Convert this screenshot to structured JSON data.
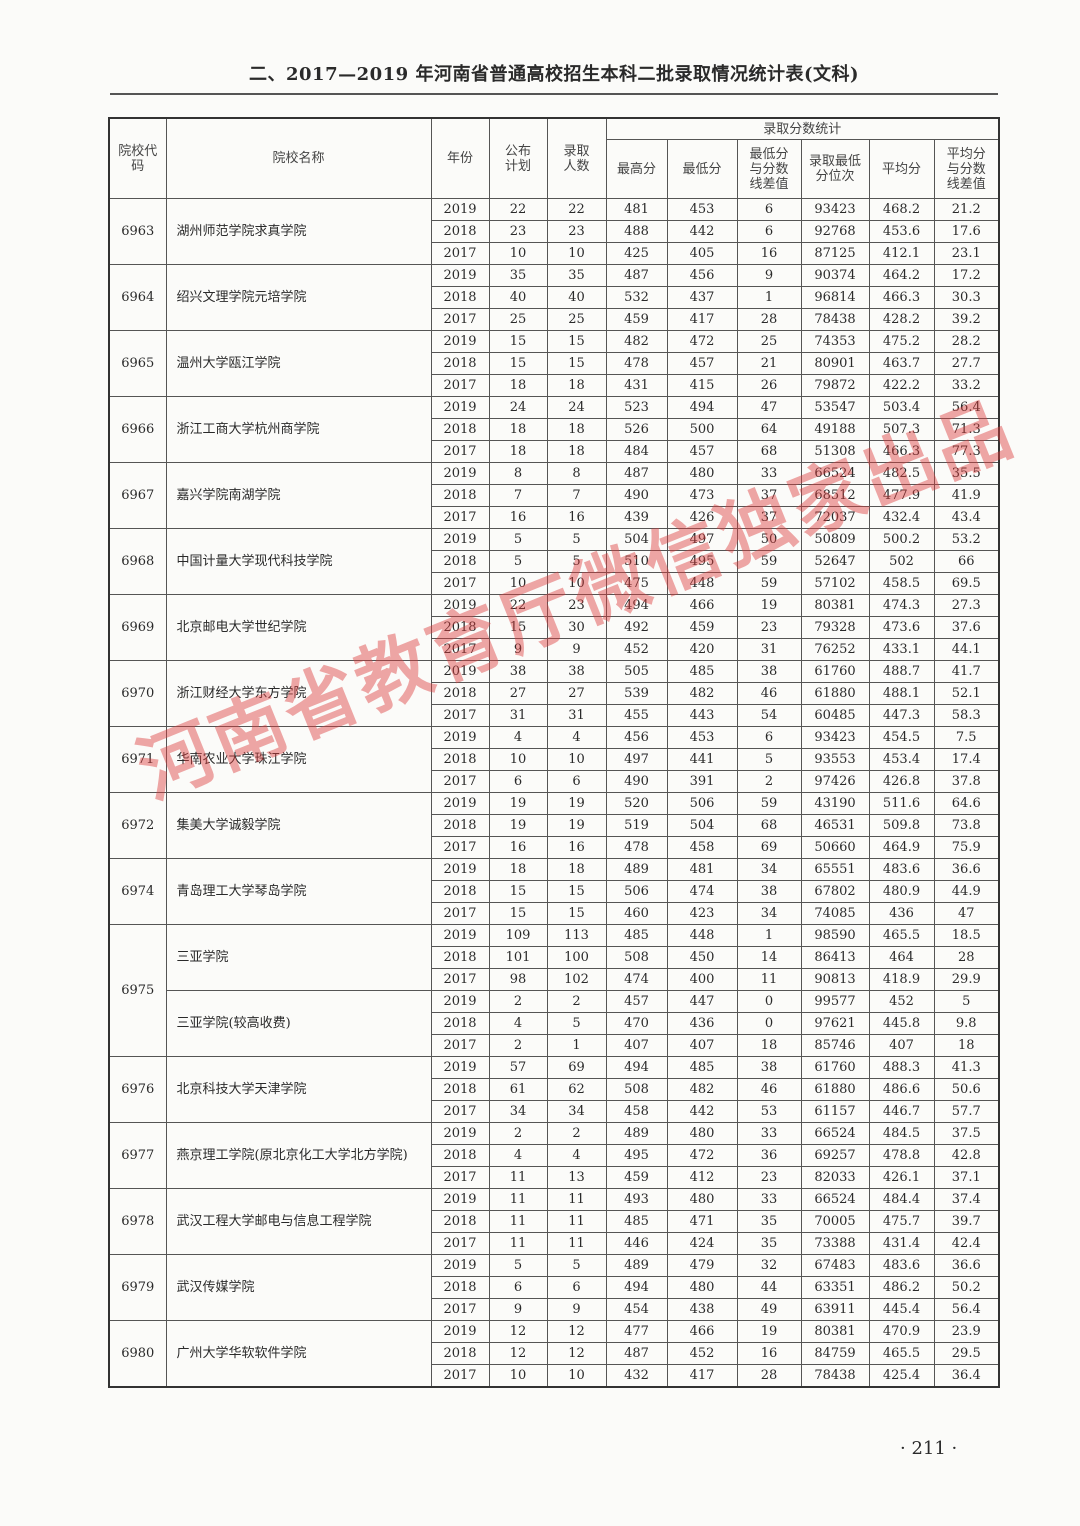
{
  "title": "二、2017—2019 年河南省普通高校招生本科二批录取情况统计表(文科)",
  "headers": {
    "code": "院校代码",
    "name": "院校名称",
    "year": "年份",
    "plan": "公布计划",
    "admitted": "录取人数",
    "group": "录取分数统计",
    "max": "最高分",
    "min": "最低分",
    "min_diff": "最低分与分数线差值",
    "rank": "录取最低分位次",
    "avg": "平均分",
    "avg_diff": "平均分与分数线差值"
  },
  "schools": [
    {
      "code": "6963",
      "names": [
        {
          "name": "湖州师范学院求真学院",
          "rows": [
            [
              "2019",
              "22",
              "22",
              "481",
              "453",
              "6",
              "93423",
              "468.2",
              "21.2"
            ],
            [
              "2018",
              "23",
              "23",
              "488",
              "442",
              "6",
              "92768",
              "453.6",
              "17.6"
            ],
            [
              "2017",
              "10",
              "10",
              "425",
              "405",
              "16",
              "87125",
              "412.1",
              "23.1"
            ]
          ]
        }
      ]
    },
    {
      "code": "6964",
      "names": [
        {
          "name": "绍兴文理学院元培学院",
          "rows": [
            [
              "2019",
              "35",
              "35",
              "487",
              "456",
              "9",
              "90374",
              "464.2",
              "17.2"
            ],
            [
              "2018",
              "40",
              "40",
              "532",
              "437",
              "1",
              "96814",
              "466.3",
              "30.3"
            ],
            [
              "2017",
              "25",
              "25",
              "459",
              "417",
              "28",
              "78438",
              "428.2",
              "39.2"
            ]
          ]
        }
      ]
    },
    {
      "code": "6965",
      "names": [
        {
          "name": "温州大学瓯江学院",
          "rows": [
            [
              "2019",
              "15",
              "15",
              "482",
              "472",
              "25",
              "74353",
              "475.2",
              "28.2"
            ],
            [
              "2018",
              "15",
              "15",
              "478",
              "457",
              "21",
              "80901",
              "463.7",
              "27.7"
            ],
            [
              "2017",
              "18",
              "18",
              "431",
              "415",
              "26",
              "79872",
              "422.2",
              "33.2"
            ]
          ]
        }
      ]
    },
    {
      "code": "6966",
      "names": [
        {
          "name": "浙江工商大学杭州商学院",
          "rows": [
            [
              "2019",
              "24",
              "24",
              "523",
              "494",
              "47",
              "53547",
              "503.4",
              "56.4"
            ],
            [
              "2018",
              "18",
              "18",
              "526",
              "500",
              "64",
              "49188",
              "507.3",
              "71.3"
            ],
            [
              "2017",
              "18",
              "18",
              "484",
              "457",
              "68",
              "51308",
              "466.3",
              "77.3"
            ]
          ]
        }
      ]
    },
    {
      "code": "6967",
      "names": [
        {
          "name": "嘉兴学院南湖学院",
          "rows": [
            [
              "2019",
              "8",
              "8",
              "487",
              "480",
              "33",
              "66524",
              "482.5",
              "35.5"
            ],
            [
              "2018",
              "7",
              "7",
              "490",
              "473",
              "37",
              "68512",
              "477.9",
              "41.9"
            ],
            [
              "2017",
              "16",
              "16",
              "439",
              "426",
              "37",
              "72037",
              "432.4",
              "43.4"
            ]
          ]
        }
      ]
    },
    {
      "code": "6968",
      "names": [
        {
          "name": "中国计量大学现代科技学院",
          "rows": [
            [
              "2019",
              "5",
              "5",
              "504",
              "497",
              "50",
              "50809",
              "500.2",
              "53.2"
            ],
            [
              "2018",
              "5",
              "5",
              "510",
              "495",
              "59",
              "52647",
              "502",
              "66"
            ],
            [
              "2017",
              "10",
              "10",
              "475",
              "448",
              "59",
              "57102",
              "458.5",
              "69.5"
            ]
          ]
        }
      ]
    },
    {
      "code": "6969",
      "names": [
        {
          "name": "北京邮电大学世纪学院",
          "rows": [
            [
              "2019",
              "22",
              "23",
              "494",
              "466",
              "19",
              "80381",
              "474.3",
              "27.3"
            ],
            [
              "2018",
              "15",
              "30",
              "492",
              "459",
              "23",
              "79328",
              "473.6",
              "37.6"
            ],
            [
              "2017",
              "9",
              "9",
              "452",
              "420",
              "31",
              "76252",
              "433.1",
              "44.1"
            ]
          ]
        }
      ]
    },
    {
      "code": "6970",
      "names": [
        {
          "name": "浙江财经大学东方学院",
          "rows": [
            [
              "2019",
              "38",
              "38",
              "505",
              "485",
              "38",
              "61760",
              "488.7",
              "41.7"
            ],
            [
              "2018",
              "27",
              "27",
              "539",
              "482",
              "46",
              "61880",
              "488.1",
              "52.1"
            ],
            [
              "2017",
              "31",
              "31",
              "455",
              "443",
              "54",
              "60485",
              "447.3",
              "58.3"
            ]
          ]
        }
      ]
    },
    {
      "code": "6971",
      "names": [
        {
          "name": "华南农业大学珠江学院",
          "rows": [
            [
              "2019",
              "4",
              "4",
              "456",
              "453",
              "6",
              "93423",
              "454.5",
              "7.5"
            ],
            [
              "2018",
              "10",
              "10",
              "497",
              "441",
              "5",
              "93553",
              "453.4",
              "17.4"
            ],
            [
              "2017",
              "6",
              "6",
              "490",
              "391",
              "2",
              "97426",
              "426.8",
              "37.8"
            ]
          ]
        }
      ]
    },
    {
      "code": "6972",
      "names": [
        {
          "name": "集美大学诚毅学院",
          "rows": [
            [
              "2019",
              "19",
              "19",
              "520",
              "506",
              "59",
              "43190",
              "511.6",
              "64.6"
            ],
            [
              "2018",
              "19",
              "19",
              "519",
              "504",
              "68",
              "46531",
              "509.8",
              "73.8"
            ],
            [
              "2017",
              "16",
              "16",
              "478",
              "458",
              "69",
              "50660",
              "464.9",
              "75.9"
            ]
          ]
        }
      ]
    },
    {
      "code": "6974",
      "names": [
        {
          "name": "青岛理工大学琴岛学院",
          "rows": [
            [
              "2019",
              "18",
              "18",
              "489",
              "481",
              "34",
              "65551",
              "483.6",
              "36.6"
            ],
            [
              "2018",
              "15",
              "15",
              "506",
              "474",
              "38",
              "67802",
              "480.9",
              "44.9"
            ],
            [
              "2017",
              "15",
              "15",
              "460",
              "423",
              "34",
              "74085",
              "436",
              "47"
            ]
          ]
        }
      ]
    },
    {
      "code": "6975",
      "names": [
        {
          "name": "三亚学院",
          "rows": [
            [
              "2019",
              "109",
              "113",
              "485",
              "448",
              "1",
              "98590",
              "465.5",
              "18.5"
            ],
            [
              "2018",
              "101",
              "100",
              "508",
              "450",
              "14",
              "86413",
              "464",
              "28"
            ],
            [
              "2017",
              "98",
              "102",
              "474",
              "400",
              "11",
              "90813",
              "418.9",
              "29.9"
            ]
          ]
        },
        {
          "name": "三亚学院(较高收费)",
          "rows": [
            [
              "2019",
              "2",
              "2",
              "457",
              "447",
              "0",
              "99577",
              "452",
              "5"
            ],
            [
              "2018",
              "4",
              "5",
              "470",
              "436",
              "0",
              "97621",
              "445.8",
              "9.8"
            ],
            [
              "2017",
              "2",
              "1",
              "407",
              "407",
              "18",
              "85746",
              "407",
              "18"
            ]
          ]
        }
      ]
    },
    {
      "code": "6976",
      "names": [
        {
          "name": "北京科技大学天津学院",
          "rows": [
            [
              "2019",
              "57",
              "69",
              "494",
              "485",
              "38",
              "61760",
              "488.3",
              "41.3"
            ],
            [
              "2018",
              "61",
              "62",
              "508",
              "482",
              "46",
              "61880",
              "486.6",
              "50.6"
            ],
            [
              "2017",
              "34",
              "34",
              "458",
              "442",
              "53",
              "61157",
              "446.7",
              "57.7"
            ]
          ]
        }
      ]
    },
    {
      "code": "6977",
      "names": [
        {
          "name": "燕京理工学院(原北京化工大学北方学院)",
          "rows": [
            [
              "2019",
              "2",
              "2",
              "489",
              "480",
              "33",
              "66524",
              "484.5",
              "37.5"
            ],
            [
              "2018",
              "4",
              "4",
              "495",
              "472",
              "36",
              "69257",
              "478.8",
              "42.8"
            ],
            [
              "2017",
              "11",
              "13",
              "459",
              "412",
              "23",
              "82033",
              "426.1",
              "37.1"
            ]
          ]
        }
      ]
    },
    {
      "code": "6978",
      "names": [
        {
          "name": "武汉工程大学邮电与信息工程学院",
          "rows": [
            [
              "2019",
              "11",
              "11",
              "493",
              "480",
              "33",
              "66524",
              "484.4",
              "37.4"
            ],
            [
              "2018",
              "11",
              "11",
              "485",
              "471",
              "35",
              "70005",
              "475.7",
              "39.7"
            ],
            [
              "2017",
              "11",
              "11",
              "446",
              "424",
              "35",
              "73388",
              "431.4",
              "42.4"
            ]
          ]
        }
      ]
    },
    {
      "code": "6979",
      "names": [
        {
          "name": "武汉传媒学院",
          "rows": [
            [
              "2019",
              "5",
              "5",
              "489",
              "479",
              "32",
              "67483",
              "483.6",
              "36.6"
            ],
            [
              "2018",
              "6",
              "6",
              "494",
              "480",
              "44",
              "63351",
              "486.2",
              "50.2"
            ],
            [
              "2017",
              "9",
              "9",
              "454",
              "438",
              "49",
              "63911",
              "445.4",
              "56.4"
            ]
          ]
        }
      ]
    },
    {
      "code": "6980",
      "names": [
        {
          "name": "广州大学华软软件学院",
          "rows": [
            [
              "2019",
              "12",
              "12",
              "477",
              "466",
              "19",
              "80381",
              "470.9",
              "23.9"
            ],
            [
              "2018",
              "12",
              "12",
              "487",
              "452",
              "16",
              "84759",
              "465.5",
              "29.5"
            ],
            [
              "2017",
              "10",
              "10",
              "432",
              "417",
              "28",
              "78438",
              "425.4",
              "36.4"
            ]
          ]
        }
      ]
    }
  ],
  "watermark": "河南省教育厅微信独家出品",
  "page_number": "· 211 ·"
}
